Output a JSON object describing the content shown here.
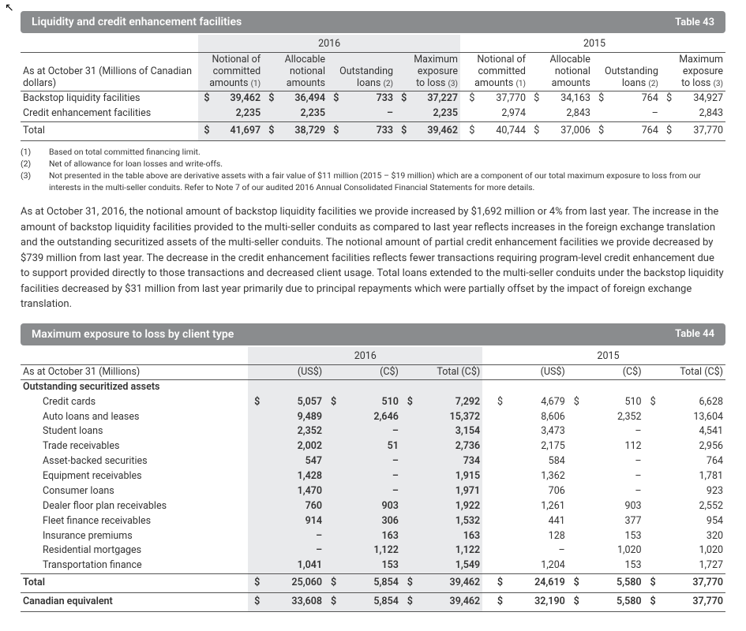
{
  "table43": {
    "title": "Liquidity and credit enhancement facilities",
    "tableNo": "Table 43",
    "asAt": "As at October 31 (Millions of Canadian dollars)",
    "years": [
      "2016",
      "2015"
    ],
    "columns": {
      "c1": {
        "l1": "Notional of",
        "l2": "committed",
        "l3": "amounts",
        "note": "(1)"
      },
      "c2": {
        "l1": "Allocable",
        "l2": "notional",
        "l3": "amounts"
      },
      "c3": {
        "l1": "Outstanding",
        "l2": "loans",
        "note": "(2)"
      },
      "c4": {
        "l1": "Maximum",
        "l2": "exposure",
        "l3": "to loss",
        "note": "(3)"
      }
    },
    "rows": [
      {
        "label": "Backstop liquidity facilities",
        "y2016": {
          "d1": "$",
          "v1": "39,462",
          "d2": "$",
          "v2": "36,494",
          "d3": "$",
          "v3": "733",
          "d4": "$",
          "v4": "37,227"
        },
        "y2015": {
          "d1": "$",
          "v1": "37,770",
          "d2": "$",
          "v2": "34,163",
          "d3": "$",
          "v3": "764",
          "d4": "$",
          "v4": "34,927"
        }
      },
      {
        "label": "Credit enhancement facilities",
        "y2016": {
          "d1": "",
          "v1": "2,235",
          "d2": "",
          "v2": "2,235",
          "d3": "",
          "v3": "–",
          "d4": "",
          "v4": "2,235"
        },
        "y2015": {
          "d1": "",
          "v1": "2,974",
          "d2": "",
          "v2": "2,843",
          "d3": "",
          "v3": "–",
          "d4": "",
          "v4": "2,843"
        }
      }
    ],
    "total": {
      "label": "Total",
      "y2016": {
        "d1": "$",
        "v1": "41,697",
        "d2": "$",
        "v2": "38,729",
        "d3": "$",
        "v3": "733",
        "d4": "$",
        "v4": "39,462"
      },
      "y2015": {
        "d1": "$",
        "v1": "40,744",
        "d2": "$",
        "v2": "37,006",
        "d3": "$",
        "v3": "764",
        "d4": "$",
        "v4": "37,770"
      }
    },
    "footnotes": {
      "1": "Based on total committed financing limit.",
      "2": "Net of allowance for loan losses and write-offs.",
      "3": "Not presented in the table above are derivative assets with a fair value of $11 million (2015 – $19 million) which are a component of our total maximum exposure to loss from our interests in the multi-seller conduits. Refer to Note 7 of our audited 2016 Annual Consolidated Financial Statements for more details."
    }
  },
  "bodyText": "As at October 31, 2016, the notional amount of backstop liquidity facilities we provide increased by $1,692 million or 4% from last year. The increase in the amount of backstop liquidity facilities provided to the multi-seller conduits as compared to last year reflects increases in the foreign exchange translation and the outstanding securitized assets of the multi-seller conduits. The notional amount of partial credit enhancement facilities we provide decreased by $739 million from last year. The decrease in the credit enhancement facilities reflects fewer transactions requiring program-level credit enhancement due to support provided directly to those transactions and decreased client usage. Total loans extended to the multi-seller conduits under the backstop liquidity facilities decreased by $31 million from last year primarily due to principal repayments which were partially offset by the impact of foreign exchange translation.",
  "table44": {
    "title": "Maximum exposure to loss by client type",
    "tableNo": "Table 44",
    "asAt": "As at October 31 (Millions)",
    "years": [
      "2016",
      "2015"
    ],
    "columns": {
      "c1": "(US$)",
      "c2": "(C$)",
      "c3": "Total (C$)"
    },
    "heading": "Outstanding securitized assets",
    "rows": [
      {
        "label": "Credit cards",
        "y2016": {
          "d1": "$",
          "v1": "5,057",
          "d2": "$",
          "v2": "510",
          "d3": "$",
          "v3": "7,292"
        },
        "y2015": {
          "d1": "$",
          "v1": "4,679",
          "d2": "$",
          "v2": "510",
          "d3": "$",
          "v3": "6,628"
        }
      },
      {
        "label": "Auto loans and leases",
        "y2016": {
          "d1": "",
          "v1": "9,489",
          "d2": "",
          "v2": "2,646",
          "d3": "",
          "v3": "15,372"
        },
        "y2015": {
          "d1": "",
          "v1": "8,606",
          "d2": "",
          "v2": "2,352",
          "d3": "",
          "v3": "13,604"
        }
      },
      {
        "label": "Student loans",
        "y2016": {
          "d1": "",
          "v1": "2,352",
          "d2": "",
          "v2": "–",
          "d3": "",
          "v3": "3,154"
        },
        "y2015": {
          "d1": "",
          "v1": "3,473",
          "d2": "",
          "v2": "–",
          "d3": "",
          "v3": "4,541"
        }
      },
      {
        "label": "Trade receivables",
        "y2016": {
          "d1": "",
          "v1": "2,002",
          "d2": "",
          "v2": "51",
          "d3": "",
          "v3": "2,736"
        },
        "y2015": {
          "d1": "",
          "v1": "2,175",
          "d2": "",
          "v2": "112",
          "d3": "",
          "v3": "2,956"
        }
      },
      {
        "label": "Asset-backed securities",
        "y2016": {
          "d1": "",
          "v1": "547",
          "d2": "",
          "v2": "–",
          "d3": "",
          "v3": "734"
        },
        "y2015": {
          "d1": "",
          "v1": "584",
          "d2": "",
          "v2": "–",
          "d3": "",
          "v3": "764"
        }
      },
      {
        "label": "Equipment receivables",
        "y2016": {
          "d1": "",
          "v1": "1,428",
          "d2": "",
          "v2": "–",
          "d3": "",
          "v3": "1,915"
        },
        "y2015": {
          "d1": "",
          "v1": "1,362",
          "d2": "",
          "v2": "–",
          "d3": "",
          "v3": "1,781"
        }
      },
      {
        "label": "Consumer loans",
        "y2016": {
          "d1": "",
          "v1": "1,470",
          "d2": "",
          "v2": "–",
          "d3": "",
          "v3": "1,971"
        },
        "y2015": {
          "d1": "",
          "v1": "706",
          "d2": "",
          "v2": "–",
          "d3": "",
          "v3": "923"
        }
      },
      {
        "label": "Dealer floor plan receivables",
        "y2016": {
          "d1": "",
          "v1": "760",
          "d2": "",
          "v2": "903",
          "d3": "",
          "v3": "1,922"
        },
        "y2015": {
          "d1": "",
          "v1": "1,261",
          "d2": "",
          "v2": "903",
          "d3": "",
          "v3": "2,552"
        }
      },
      {
        "label": "Fleet finance receivables",
        "y2016": {
          "d1": "",
          "v1": "914",
          "d2": "",
          "v2": "306",
          "d3": "",
          "v3": "1,532"
        },
        "y2015": {
          "d1": "",
          "v1": "441",
          "d2": "",
          "v2": "377",
          "d3": "",
          "v3": "954"
        }
      },
      {
        "label": "Insurance premiums",
        "y2016": {
          "d1": "",
          "v1": "–",
          "d2": "",
          "v2": "163",
          "d3": "",
          "v3": "163"
        },
        "y2015": {
          "d1": "",
          "v1": "128",
          "d2": "",
          "v2": "153",
          "d3": "",
          "v3": "320"
        }
      },
      {
        "label": "Residential mortgages",
        "y2016": {
          "d1": "",
          "v1": "–",
          "d2": "",
          "v2": "1,122",
          "d3": "",
          "v3": "1,122"
        },
        "y2015": {
          "d1": "",
          "v1": "–",
          "d2": "",
          "v2": "1,020",
          "d3": "",
          "v3": "1,020"
        }
      },
      {
        "label": "Transportation finance",
        "y2016": {
          "d1": "",
          "v1": "1,041",
          "d2": "",
          "v2": "153",
          "d3": "",
          "v3": "1,549"
        },
        "y2015": {
          "d1": "",
          "v1": "1,204",
          "d2": "",
          "v2": "153",
          "d3": "",
          "v3": "1,727"
        }
      }
    ],
    "total": {
      "label": "Total",
      "y2016": {
        "d1": "$",
        "v1": "25,060",
        "d2": "$",
        "v2": "5,854",
        "d3": "$",
        "v3": "39,462"
      },
      "y2015": {
        "d1": "$",
        "v1": "24,619",
        "d2": "$",
        "v2": "5,580",
        "d3": "$",
        "v3": "37,770"
      }
    },
    "cdn": {
      "label": "Canadian equivalent",
      "y2016": {
        "d1": "$",
        "v1": "33,608",
        "d2": "$",
        "v2": "5,854",
        "d3": "$",
        "v3": "39,462"
      },
      "y2015": {
        "d1": "$",
        "v1": "32,190",
        "d2": "$",
        "v2": "5,580",
        "d3": "$",
        "v3": "37,770"
      }
    }
  },
  "colors": {
    "bar": "#8a8c8e",
    "shade": "#e9eaec",
    "line": "#555",
    "text": "#333"
  }
}
